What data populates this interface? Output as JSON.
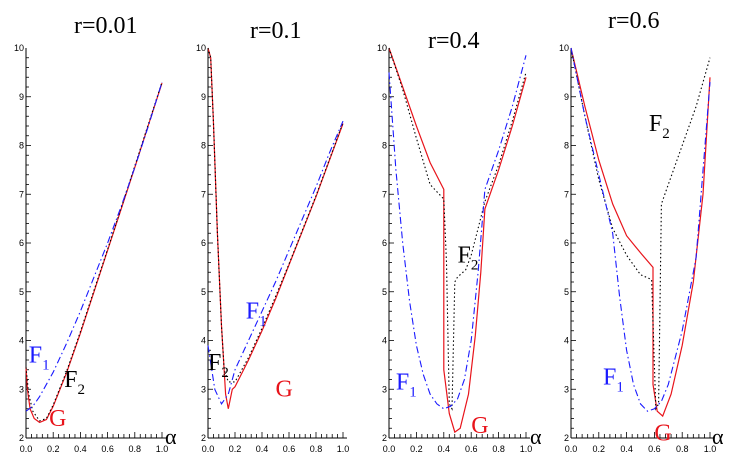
{
  "chart_data": [
    {
      "type": "line",
      "title": "r=0.01",
      "xlabel": "α",
      "ylabel": "",
      "xlim": [
        0,
        1
      ],
      "ylim": [
        2,
        10
      ],
      "xticks": [
        "0.0",
        "0.2",
        "0.4",
        "0.6",
        "0.8",
        "1.0"
      ],
      "yticks": [
        "2",
        "3",
        "4",
        "5",
        "6",
        "7",
        "8",
        "9",
        "10"
      ],
      "series": [
        {
          "name": "G",
          "color": "#e8141b",
          "dash": "solid",
          "points": [
            [
              0.0,
              3.45
            ],
            [
              0.01,
              3.0
            ],
            [
              0.03,
              2.6
            ],
            [
              0.06,
              2.4
            ],
            [
              0.1,
              2.32
            ],
            [
              0.15,
              2.38
            ],
            [
              0.2,
              2.65
            ],
            [
              0.3,
              3.35
            ],
            [
              0.4,
              4.15
            ],
            [
              0.5,
              5.0
            ],
            [
              0.6,
              5.85
            ],
            [
              0.7,
              6.7
            ],
            [
              0.8,
              7.55
            ],
            [
              0.9,
              8.42
            ],
            [
              1.0,
              9.28
            ]
          ]
        },
        {
          "name": "F_2",
          "color": "#000000",
          "dash": "dot",
          "points": [
            [
              0.0,
              3.45
            ],
            [
              0.02,
              2.9
            ],
            [
              0.05,
              2.55
            ],
            [
              0.1,
              2.35
            ],
            [
              0.15,
              2.4
            ],
            [
              0.2,
              2.68
            ],
            [
              0.3,
              3.38
            ],
            [
              0.4,
              4.18
            ],
            [
              0.5,
              5.03
            ],
            [
              0.6,
              5.87
            ],
            [
              0.7,
              6.72
            ],
            [
              0.8,
              7.58
            ],
            [
              0.9,
              8.44
            ],
            [
              1.0,
              9.3
            ]
          ]
        },
        {
          "name": "F_1",
          "color": "#1a1aff",
          "dash": "dashdot",
          "points": [
            [
              0.0,
              2.55
            ],
            [
              0.05,
              2.65
            ],
            [
              0.1,
              2.85
            ],
            [
              0.2,
              3.35
            ],
            [
              0.3,
              3.95
            ],
            [
              0.4,
              4.6
            ],
            [
              0.5,
              5.3
            ],
            [
              0.6,
              6.0
            ],
            [
              0.7,
              6.75
            ],
            [
              0.8,
              7.55
            ],
            [
              0.9,
              8.4
            ],
            [
              1.0,
              9.3
            ]
          ]
        }
      ],
      "labels": [
        {
          "series": "F_1",
          "x": 0.02,
          "y": 3.55
        },
        {
          "series": "F_2",
          "x": 0.28,
          "y": 3.05
        },
        {
          "series": "G",
          "x": 0.17,
          "y": 2.25
        }
      ]
    },
    {
      "type": "line",
      "title": "r=0.1",
      "xlabel": "",
      "ylabel": "",
      "xlim": [
        0,
        1
      ],
      "ylim": [
        2,
        10
      ],
      "xticks": [
        "0.0",
        "0.2",
        "0.4",
        "0.6",
        "0.8",
        "1.0"
      ],
      "yticks": [
        "2",
        "3",
        "4",
        "5",
        "6",
        "7",
        "8",
        "9",
        "10"
      ],
      "series": [
        {
          "name": "G",
          "color": "#e8141b",
          "dash": "solid",
          "points": [
            [
              0.0,
              10.0
            ],
            [
              0.02,
              9.8
            ],
            [
              0.04,
              8.5
            ],
            [
              0.07,
              6.2
            ],
            [
              0.1,
              4.3
            ],
            [
              0.13,
              2.9
            ],
            [
              0.15,
              2.6
            ],
            [
              0.18,
              3.0
            ],
            [
              0.2,
              3.05
            ],
            [
              0.3,
              3.6
            ],
            [
              0.4,
              4.2
            ],
            [
              0.5,
              4.85
            ],
            [
              0.6,
              5.55
            ],
            [
              0.7,
              6.25
            ],
            [
              0.8,
              6.95
            ],
            [
              0.9,
              7.7
            ],
            [
              1.0,
              8.45
            ]
          ]
        },
        {
          "name": "F_2",
          "color": "#000000",
          "dash": "dot",
          "points": [
            [
              0.0,
              10.0
            ],
            [
              0.02,
              9.8
            ],
            [
              0.04,
              8.5
            ],
            [
              0.07,
              6.2
            ],
            [
              0.1,
              4.3
            ],
            [
              0.12,
              3.4
            ],
            [
              0.15,
              3.15
            ],
            [
              0.2,
              3.15
            ],
            [
              0.3,
              3.65
            ],
            [
              0.4,
              4.25
            ],
            [
              0.5,
              4.9
            ],
            [
              0.6,
              5.57
            ],
            [
              0.7,
              6.27
            ],
            [
              0.8,
              6.97
            ],
            [
              0.9,
              7.72
            ],
            [
              1.0,
              8.47
            ]
          ]
        },
        {
          "name": "F_1",
          "color": "#1a1aff",
          "dash": "dashdot",
          "points": [
            [
              0.0,
              3.9
            ],
            [
              0.05,
              3.0
            ],
            [
              0.1,
              2.7
            ],
            [
              0.15,
              2.9
            ],
            [
              0.2,
              3.4
            ],
            [
              0.3,
              4.0
            ],
            [
              0.4,
              4.6
            ],
            [
              0.5,
              5.2
            ],
            [
              0.6,
              5.85
            ],
            [
              0.7,
              6.5
            ],
            [
              0.8,
              7.15
            ],
            [
              0.9,
              7.85
            ],
            [
              1.0,
              8.5
            ]
          ]
        }
      ],
      "labels": [
        {
          "series": "F_1",
          "x": 0.28,
          "y": 4.45
        },
        {
          "series": "F_2",
          "x": 0.0,
          "y": 3.4
        },
        {
          "series": "G",
          "x": 0.5,
          "y": 2.85
        }
      ]
    },
    {
      "type": "line",
      "title": "r=0.4",
      "xlabel": "α",
      "ylabel": "",
      "xlim": [
        0,
        1
      ],
      "ylim": [
        2,
        10
      ],
      "xticks": [
        "0.0",
        "0.2",
        "0.4",
        "0.6",
        "0.8",
        "1.0"
      ],
      "yticks": [
        "2",
        "3",
        "4",
        "5",
        "6",
        "7",
        "8",
        "9",
        "10"
      ],
      "series": [
        {
          "name": "G",
          "color": "#e8141b",
          "dash": "solid",
          "points": [
            [
              0.0,
              10.0
            ],
            [
              0.1,
              9.2
            ],
            [
              0.2,
              8.4
            ],
            [
              0.3,
              7.65
            ],
            [
              0.4,
              7.1
            ],
            [
              0.4,
              3.4
            ],
            [
              0.44,
              2.5
            ],
            [
              0.48,
              2.12
            ],
            [
              0.52,
              2.2
            ],
            [
              0.58,
              2.9
            ],
            [
              0.63,
              4.1
            ],
            [
              0.67,
              5.4
            ],
            [
              0.7,
              6.7
            ],
            [
              0.8,
              7.5
            ],
            [
              0.9,
              8.4
            ],
            [
              1.0,
              9.4
            ]
          ]
        },
        {
          "name": "F_2",
          "color": "#000000",
          "dash": "dot",
          "points": [
            [
              0.0,
              10.0
            ],
            [
              0.1,
              9.15
            ],
            [
              0.2,
              8.15
            ],
            [
              0.3,
              7.2
            ],
            [
              0.4,
              6.9
            ],
            [
              0.42,
              5.6
            ],
            [
              0.44,
              2.7
            ],
            [
              0.46,
              2.6
            ],
            [
              0.48,
              5.2
            ],
            [
              0.5,
              5.3
            ],
            [
              0.56,
              5.45
            ],
            [
              0.6,
              5.75
            ],
            [
              0.65,
              6.3
            ],
            [
              0.7,
              6.85
            ],
            [
              0.8,
              7.6
            ],
            [
              0.9,
              8.5
            ],
            [
              1.0,
              9.5
            ]
          ]
        },
        {
          "name": "F_1",
          "color": "#1a1aff",
          "dash": "dashdot",
          "points": [
            [
              0.0,
              9.5
            ],
            [
              0.05,
              7.5
            ],
            [
              0.1,
              6.0
            ],
            [
              0.15,
              4.8
            ],
            [
              0.2,
              3.9
            ],
            [
              0.25,
              3.3
            ],
            [
              0.3,
              2.9
            ],
            [
              0.35,
              2.7
            ],
            [
              0.4,
              2.6
            ],
            [
              0.45,
              2.65
            ],
            [
              0.5,
              2.8
            ],
            [
              0.55,
              3.2
            ],
            [
              0.6,
              4.0
            ],
            [
              0.65,
              5.4
            ],
            [
              0.7,
              7.1
            ],
            [
              0.8,
              7.9
            ],
            [
              0.9,
              8.8
            ],
            [
              1.0,
              9.85
            ]
          ]
        }
      ],
      "labels": [
        {
          "series": "F_2",
          "x": 0.5,
          "y": 5.6
        },
        {
          "series": "F_1",
          "x": 0.05,
          "y": 3.0
        },
        {
          "series": "G",
          "x": 0.6,
          "y": 2.1
        }
      ]
    },
    {
      "type": "line",
      "title": "r=0.6",
      "xlabel": "α",
      "ylabel": "",
      "xlim": [
        0,
        1
      ],
      "ylim": [
        2,
        10
      ],
      "xticks": [
        "0.0",
        "0.2",
        "0.4",
        "0.6",
        "0.8",
        "1.0"
      ],
      "yticks": [
        "2",
        "3",
        "4",
        "5",
        "6",
        "7",
        "8",
        "9",
        "10"
      ],
      "series": [
        {
          "name": "G",
          "color": "#e8141b",
          "dash": "solid",
          "points": [
            [
              0.0,
              10.0
            ],
            [
              0.1,
              8.8
            ],
            [
              0.2,
              7.7
            ],
            [
              0.3,
              6.8
            ],
            [
              0.4,
              6.15
            ],
            [
              0.5,
              5.8
            ],
            [
              0.59,
              5.5
            ],
            [
              0.59,
              3.1
            ],
            [
              0.62,
              2.55
            ],
            [
              0.66,
              2.45
            ],
            [
              0.72,
              2.9
            ],
            [
              0.8,
              3.9
            ],
            [
              0.88,
              5.2
            ],
            [
              0.95,
              7.0
            ],
            [
              1.0,
              9.4
            ]
          ]
        },
        {
          "name": "F_2",
          "color": "#000000",
          "dash": "dot",
          "points": [
            [
              0.0,
              10.0
            ],
            [
              0.1,
              8.6
            ],
            [
              0.2,
              7.3
            ],
            [
              0.3,
              6.3
            ],
            [
              0.4,
              5.75
            ],
            [
              0.5,
              5.35
            ],
            [
              0.58,
              5.25
            ],
            [
              0.61,
              2.6
            ],
            [
              0.63,
              2.7
            ],
            [
              0.65,
              6.8
            ],
            [
              0.7,
              7.2
            ],
            [
              0.8,
              8.0
            ],
            [
              0.9,
              8.8
            ],
            [
              1.0,
              9.8
            ]
          ]
        },
        {
          "name": "F_1",
          "color": "#1a1aff",
          "dash": "dashdot",
          "points": [
            [
              0.0,
              10.0
            ],
            [
              0.1,
              8.6
            ],
            [
              0.2,
              7.4
            ],
            [
              0.3,
              6.2
            ],
            [
              0.35,
              4.9
            ],
            [
              0.4,
              3.8
            ],
            [
              0.45,
              3.1
            ],
            [
              0.5,
              2.7
            ],
            [
              0.55,
              2.55
            ],
            [
              0.6,
              2.6
            ],
            [
              0.65,
              2.75
            ],
            [
              0.7,
              3.1
            ],
            [
              0.8,
              4.2
            ],
            [
              0.9,
              5.7
            ],
            [
              1.0,
              9.3
            ]
          ]
        }
      ],
      "labels": [
        {
          "series": "F_2",
          "x": 0.56,
          "y": 8.3
        },
        {
          "series": "F_1",
          "x": 0.23,
          "y": 3.1
        },
        {
          "series": "G",
          "x": 0.6,
          "y": 1.95
        }
      ]
    }
  ]
}
